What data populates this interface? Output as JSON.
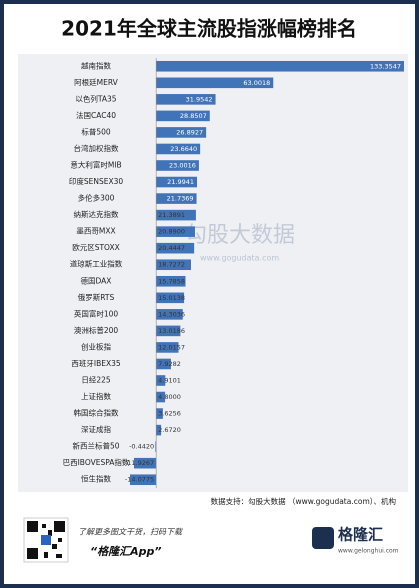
{
  "chart_data": {
    "type": "barh",
    "title": "2021年全球主流股指涨幅榜排名",
    "categories": [
      "越南指数",
      "阿根廷MERV",
      "以色列TA35",
      "法国CAC40",
      "标普500",
      "台湾加权指数",
      "意大利富时MIB",
      "印度SENSEX30",
      "多伦多300",
      "纳斯达克指数",
      "墨西哥MXX",
      "欧元区STOXX",
      "道琼斯工业指数",
      "德国DAX",
      "俄罗斯RTS",
      "英国富时100",
      "澳洲标普200",
      "创业板指",
      "西班牙IBEX35",
      "日经225",
      "上证指数",
      "韩国综合指数",
      "深证成指",
      "新西兰标普50",
      "巴西IBOVESPA指数",
      "恒生指数"
    ],
    "values": [
      133.3547,
      63.0018,
      31.9542,
      28.8507,
      26.8927,
      23.664,
      23.0016,
      21.9941,
      21.7369,
      21.3891,
      20.89,
      20.4447,
      18.7272,
      15.7858,
      15.0138,
      14.3036,
      13.0186,
      12.0157,
      7.9282,
      4.9101,
      4.8,
      3.6256,
      2.672,
      -0.442,
      -11.9267,
      -14.0775
    ],
    "value_labels": [
      "133.3547",
      "63.0018",
      "31.9542",
      "28.8507",
      "26.8927",
      "23.6640",
      "23.0016",
      "21.9941",
      "21.7369",
      "21.3891",
      "20.8900",
      "20.4447",
      "18.7272",
      "15.7858",
      "15.0138",
      "14.3036",
      "13.0186",
      "12.0157",
      "7.9282",
      "4.9101",
      "4.8000",
      "3.6256",
      "2.6720",
      "-0.4420",
      "-11.9267",
      "-14.0775"
    ],
    "color": "#4173b8",
    "watermark": {
      "name": "勾股大数据",
      "url": "www.gogudata.com"
    },
    "source": "数据支持：勾股大数据 （www.gogudata.com）、机构"
  },
  "footer": {
    "promo": "了解更多图文干货，扫码下载",
    "app": "“格隆汇App”",
    "brand": "格隆汇",
    "site": "www.gelonghui.com"
  }
}
